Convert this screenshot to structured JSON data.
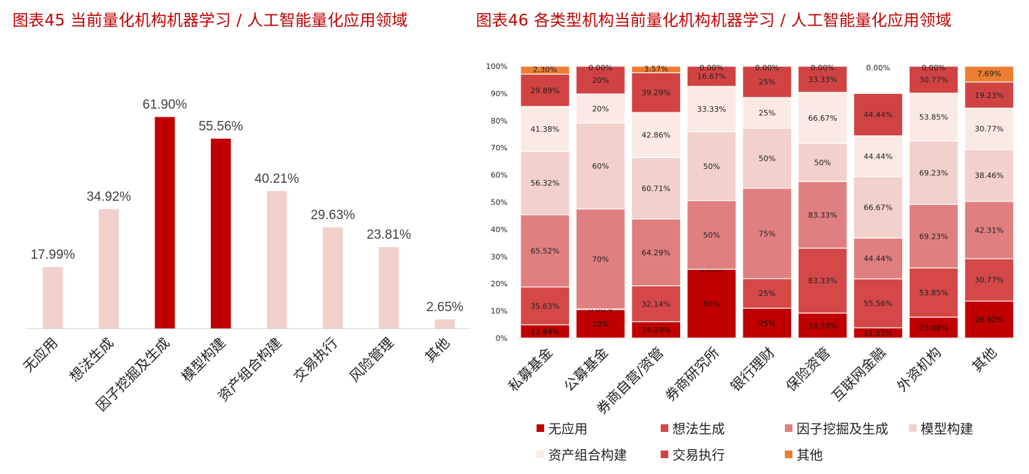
{
  "titles": {
    "left": "图表45  当前量化机构机器学习 / 人工智能量化应用领域",
    "right": "图表46  各类型机构当前量化机构机器学习 / 人工智能量化应用领域"
  },
  "colors": {
    "title": "#c00000",
    "bar_highlight": "#c00000",
    "bar_normal": "#f2d0cb",
    "axis": "#d9d9d9",
    "series": [
      "#c00000",
      "#d44848",
      "#e07f80",
      "#f2d0cb",
      "#fbe9e6",
      "#d14343",
      "#ed7d31"
    ]
  },
  "chart_data": [
    {
      "type": "bar",
      "title": "图表45  当前量化机构机器学习 / 人工智能量化应用领域",
      "categories": [
        "无应用",
        "想法生成",
        "因子挖掘及生成",
        "模型构建",
        "资产组合构建",
        "交易执行",
        "风险管理",
        "其他"
      ],
      "values": [
        17.99,
        34.92,
        61.9,
        55.56,
        40.21,
        29.63,
        23.81,
        2.65
      ],
      "value_labels": [
        "17.99%",
        "34.92%",
        "61.90%",
        "55.56%",
        "40.21%",
        "29.63%",
        "23.81%",
        "2.65%"
      ],
      "highlighted": [
        false,
        false,
        true,
        true,
        false,
        false,
        false,
        false
      ],
      "ylim": [
        0,
        80
      ],
      "xlabel": "",
      "ylabel": ""
    },
    {
      "type": "bar",
      "stacked": true,
      "normalized": true,
      "title": "图表46  各类型机构当前量化机构机器学习 / 人工智能量化应用领域",
      "categories": [
        "私募基金",
        "公募基金",
        "券商自营/资管",
        "券商研究所",
        "银行理财",
        "保险资管",
        "互联网金融",
        "外资机构",
        "其他"
      ],
      "yticks": [
        "0%",
        "10%",
        "20%",
        "30%",
        "40%",
        "50%",
        "60%",
        "70%",
        "80%",
        "90%",
        "100%"
      ],
      "series": [
        {
          "name": "无应用",
          "labels": [
            "12.64%",
            "20%",
            "14.29%",
            "50%",
            "25%",
            "33.33%",
            "11.11%",
            "23.08%",
            "26.92%"
          ]
        },
        {
          "name": "想法生成",
          "labels": [
            "35.63%",
            "0.00%",
            "32.14%",
            "0.00%",
            "25%",
            "83.33%",
            "55.56%",
            "53.85%",
            "30.77%"
          ]
        },
        {
          "name": "因子挖掘及生成",
          "labels": [
            "65.52%",
            "70%",
            "64.29%",
            "50%",
            "75%",
            "83.33%",
            "44.44%",
            "69.23%",
            "42.31%"
          ]
        },
        {
          "name": "模型构建",
          "labels": [
            "56.32%",
            "60%",
            "60.71%",
            "50%",
            "50%",
            "50%",
            "66.67%",
            "69.23%",
            "38.46%"
          ]
        },
        {
          "name": "资产组合构建",
          "labels": [
            "41.38%",
            "20%",
            "42.86%",
            "33.33%",
            "25%",
            "66.67%",
            "44.44%",
            "53.85%",
            "30.77%"
          ]
        },
        {
          "name": "交易执行",
          "labels": [
            "29.89%",
            "20%",
            "39.29%",
            "16.67%",
            "25%",
            "33.33%",
            "44.44%",
            "30.77%",
            "19.23%"
          ]
        },
        {
          "name": "其他",
          "labels": [
            "2.30%",
            "0.00%",
            "3.57%",
            "0.00%",
            "0.00%",
            "0.00%",
            "0.00%",
            "0.00%",
            "7.69%"
          ]
        }
      ],
      "segment_shares_pct": [
        [
          4.9,
          10.5,
          6.0,
          25.3,
          11.0,
          9.2,
          3.8,
          7.7,
          13.6
        ],
        [
          13.9,
          0.2,
          13.2,
          0.0,
          10.9,
          23.9,
          18.0,
          18.1,
          15.6
        ],
        [
          26.6,
          36.8,
          24.6,
          25.3,
          33.2,
          24.5,
          15.0,
          23.4,
          21.1
        ],
        [
          23.3,
          31.6,
          22.6,
          25.3,
          22.1,
          14.0,
          22.6,
          23.3,
          19.1
        ],
        [
          16.5,
          10.7,
          16.6,
          16.7,
          11.3,
          18.8,
          15.0,
          17.6,
          15.2
        ],
        [
          11.9,
          10.2,
          14.6,
          7.4,
          11.5,
          9.6,
          15.6,
          9.9,
          9.6
        ],
        [
          2.9,
          0.0,
          2.4,
          0.0,
          0.0,
          0.0,
          0.0,
          0.0,
          5.8
        ]
      ],
      "legend_position": "bottom"
    }
  ]
}
